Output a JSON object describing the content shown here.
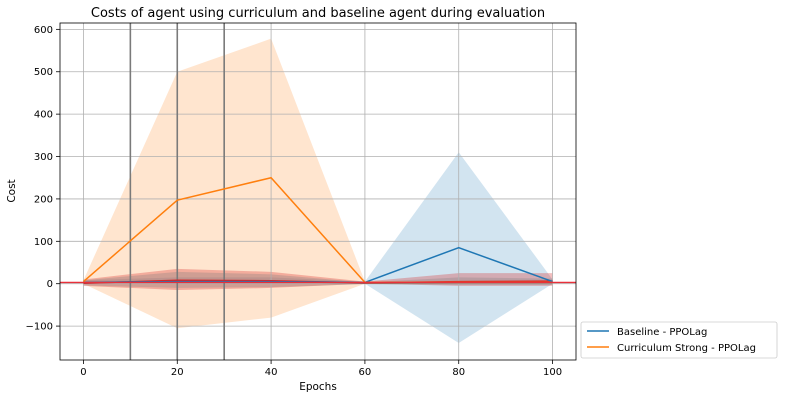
{
  "chart_data": {
    "type": "line",
    "title": "Costs of agent using curriculum and baseline agent during evaluation",
    "xlabel": "Epochs",
    "ylabel": "Cost",
    "xlim": [
      -5,
      105
    ],
    "ylim": [
      -180,
      615
    ],
    "xticks": [
      0,
      20,
      40,
      60,
      80,
      100
    ],
    "yticks": [
      -100,
      0,
      100,
      200,
      300,
      400,
      500,
      600
    ],
    "grid": true,
    "legend_position": "outside-bottom-right",
    "vertical_markers": [
      10,
      20,
      30
    ],
    "reference_line_y": 3,
    "series": [
      {
        "name": "Baseline - PPOLag",
        "color": "#1f77b4",
        "x": [
          0,
          20,
          40,
          60,
          80,
          100
        ],
        "values": [
          3,
          5,
          5,
          3,
          85,
          5
        ],
        "lower": [
          0,
          0,
          0,
          0,
          -140,
          0
        ],
        "upper": [
          8,
          15,
          15,
          5,
          310,
          10
        ]
      },
      {
        "name": "Curriculum Strong - PPOLag",
        "color": "#ff7f0e",
        "x": [
          0,
          20,
          40,
          60,
          80,
          100
        ],
        "values": [
          5,
          197,
          250,
          3,
          3,
          3
        ],
        "lower": [
          0,
          -105,
          -80,
          0,
          0,
          0
        ],
        "upper": [
          8,
          500,
          578,
          5,
          5,
          5
        ]
      },
      {
        "color": "#d62728",
        "x": [
          0,
          20,
          40,
          60,
          80,
          100
        ],
        "values": [
          1,
          8,
          7,
          2,
          5,
          6
        ],
        "lower": [
          -5,
          -15,
          -10,
          0,
          -5,
          -5
        ],
        "upper": [
          10,
          35,
          28,
          5,
          25,
          25
        ]
      },
      {
        "color": "#7f7f7f",
        "x": [
          0,
          20,
          40,
          60,
          80,
          100
        ],
        "values": [
          2,
          6,
          6,
          1,
          2,
          2
        ],
        "lower": [
          -4,
          -10,
          -8,
          -1,
          -3,
          -3
        ],
        "upper": [
          8,
          28,
          22,
          3,
          15,
          12
        ]
      }
    ]
  }
}
